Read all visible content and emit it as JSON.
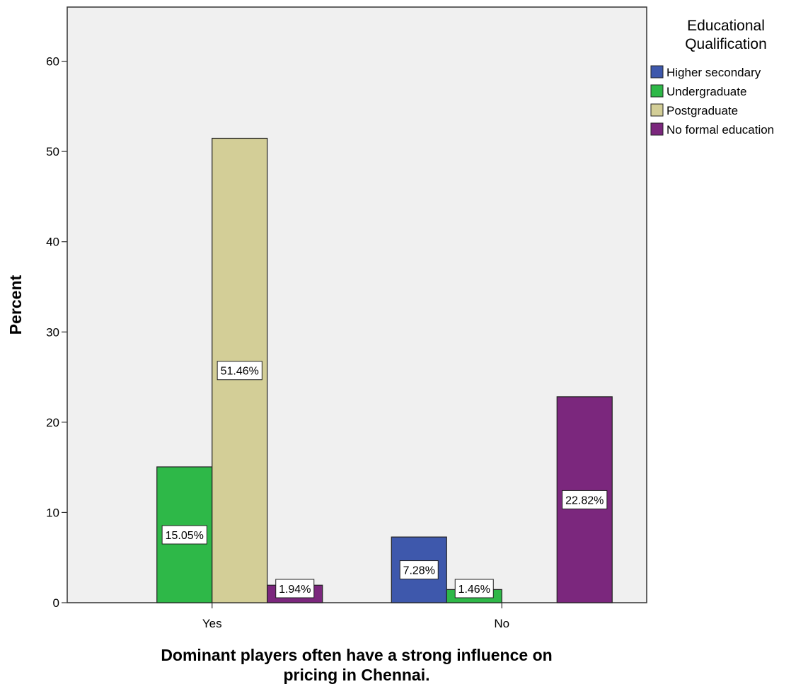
{
  "chart_data": {
    "type": "bar",
    "xlabel_lines": [
      "Dominant players often have a strong influence on",
      "pricing in Chennai."
    ],
    "ylabel": "Percent",
    "ylim": [
      0,
      66
    ],
    "yticks": [
      0,
      10,
      20,
      30,
      40,
      50,
      60
    ],
    "categories": [
      "Yes",
      "No"
    ],
    "legend_title_lines": [
      "Educational",
      "Qualification"
    ],
    "legend_position": "right",
    "grid": false,
    "background": "#f0f0f0",
    "series": [
      {
        "name": "Higher secondary",
        "color": "#3e58ac",
        "values": [
          null,
          7.28
        ],
        "labels": [
          "",
          "7.28%"
        ]
      },
      {
        "name": "Undergraduate",
        "color": "#2eb848",
        "values": [
          15.05,
          1.46
        ],
        "labels": [
          "15.05%",
          "1.46%"
        ]
      },
      {
        "name": "Postgraduate",
        "color": "#d3ce97",
        "values": [
          51.46,
          null
        ],
        "labels": [
          "51.46%",
          ""
        ]
      },
      {
        "name": "No formal education",
        "color": "#7b277d",
        "values": [
          1.94,
          22.82
        ],
        "labels": [
          "1.94%",
          "22.82%"
        ]
      }
    ]
  }
}
